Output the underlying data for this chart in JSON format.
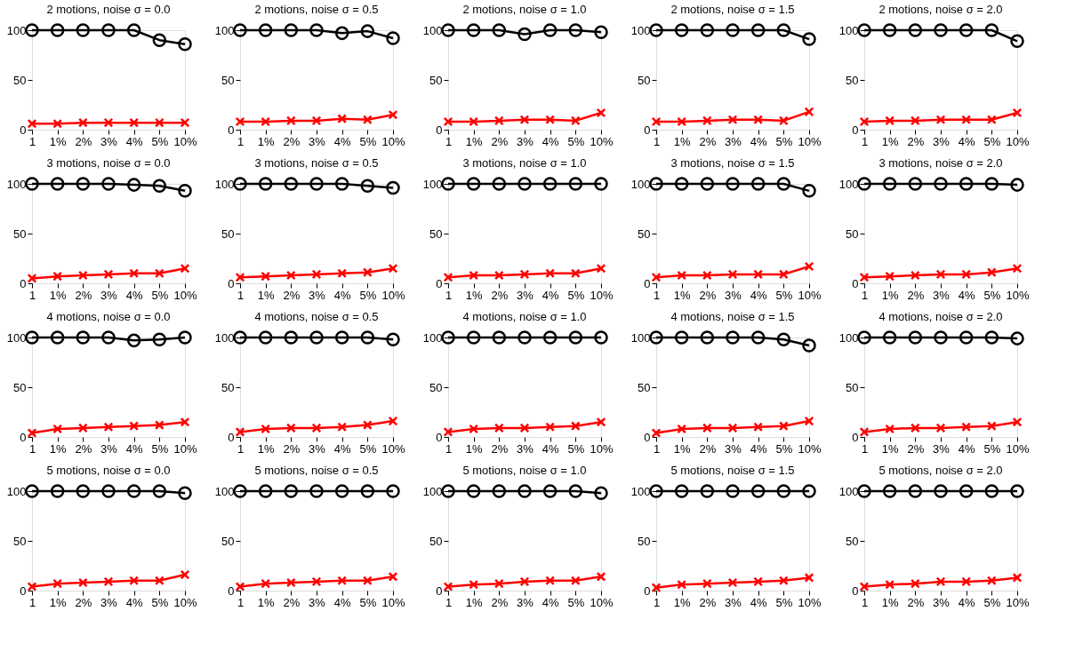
{
  "chart_data": [
    {
      "type": "line",
      "title": "2 motions, noise σ = 0.0",
      "categories": [
        "1",
        "1%",
        "2%",
        "3%",
        "4%",
        "5%",
        "10%"
      ],
      "ylim": [
        0,
        100
      ],
      "yticks": [
        0,
        50,
        100
      ],
      "grid": false,
      "series": [
        {
          "color": "#000000",
          "marker": "circle",
          "values": [
            100,
            100,
            100,
            100,
            100,
            90,
            86
          ]
        },
        {
          "color": "#ff0000",
          "marker": "cross",
          "values": [
            6,
            6,
            7,
            7,
            7,
            7,
            7
          ]
        }
      ]
    },
    {
      "type": "line",
      "title": "2 motions, noise σ = 0.5",
      "categories": [
        "1",
        "1%",
        "2%",
        "3%",
        "4%",
        "5%",
        "10%"
      ],
      "ylim": [
        0,
        100
      ],
      "yticks": [
        0,
        50,
        100
      ],
      "grid": false,
      "series": [
        {
          "color": "#000000",
          "marker": "circle",
          "values": [
            100,
            100,
            100,
            100,
            97,
            99,
            92
          ]
        },
        {
          "color": "#ff0000",
          "marker": "cross",
          "values": [
            8,
            8,
            9,
            9,
            11,
            10,
            15
          ]
        }
      ]
    },
    {
      "type": "line",
      "title": "2 motions, noise σ = 1.0",
      "categories": [
        "1",
        "1%",
        "2%",
        "3%",
        "4%",
        "5%",
        "10%"
      ],
      "ylim": [
        0,
        100
      ],
      "yticks": [
        0,
        50,
        100
      ],
      "grid": false,
      "series": [
        {
          "color": "#000000",
          "marker": "circle",
          "values": [
            100,
            100,
            100,
            96,
            100,
            100,
            98
          ]
        },
        {
          "color": "#ff0000",
          "marker": "cross",
          "values": [
            8,
            8,
            9,
            10,
            10,
            9,
            17
          ]
        }
      ]
    },
    {
      "type": "line",
      "title": "2 motions, noise σ = 1.5",
      "categories": [
        "1",
        "1%",
        "2%",
        "3%",
        "4%",
        "5%",
        "10%"
      ],
      "ylim": [
        0,
        100
      ],
      "yticks": [
        0,
        50,
        100
      ],
      "grid": false,
      "series": [
        {
          "color": "#000000",
          "marker": "circle",
          "values": [
            100,
            100,
            100,
            100,
            100,
            100,
            91
          ]
        },
        {
          "color": "#ff0000",
          "marker": "cross",
          "values": [
            8,
            8,
            9,
            10,
            10,
            9,
            18
          ]
        }
      ]
    },
    {
      "type": "line",
      "title": "2 motions, noise σ = 2.0",
      "categories": [
        "1",
        "1%",
        "2%",
        "3%",
        "4%",
        "5%",
        "10%"
      ],
      "ylim": [
        0,
        100
      ],
      "yticks": [
        0,
        50,
        100
      ],
      "grid": false,
      "series": [
        {
          "color": "#000000",
          "marker": "circle",
          "values": [
            100,
            100,
            100,
            100,
            100,
            100,
            89
          ]
        },
        {
          "color": "#ff0000",
          "marker": "cross",
          "values": [
            8,
            9,
            9,
            10,
            10,
            10,
            17
          ]
        }
      ]
    },
    {
      "type": "line",
      "title": "3 motions, noise σ = 0.0",
      "categories": [
        "1",
        "1%",
        "2%",
        "3%",
        "4%",
        "5%",
        "10%"
      ],
      "ylim": [
        0,
        100
      ],
      "yticks": [
        0,
        50,
        100
      ],
      "grid": false,
      "series": [
        {
          "color": "#000000",
          "marker": "circle",
          "values": [
            100,
            100,
            100,
            100,
            99,
            98,
            93
          ]
        },
        {
          "color": "#ff0000",
          "marker": "cross",
          "values": [
            5,
            7,
            8,
            9,
            10,
            10,
            15
          ]
        }
      ]
    },
    {
      "type": "line",
      "title": "3 motions, noise σ = 0.5",
      "categories": [
        "1",
        "1%",
        "2%",
        "3%",
        "4%",
        "5%",
        "10%"
      ],
      "ylim": [
        0,
        100
      ],
      "yticks": [
        0,
        50,
        100
      ],
      "grid": false,
      "series": [
        {
          "color": "#000000",
          "marker": "circle",
          "values": [
            100,
            100,
            100,
            100,
            100,
            98,
            96
          ]
        },
        {
          "color": "#ff0000",
          "marker": "cross",
          "values": [
            6,
            7,
            8,
            9,
            10,
            11,
            15
          ]
        }
      ]
    },
    {
      "type": "line",
      "title": "3 motions, noise σ = 1.0",
      "categories": [
        "1",
        "1%",
        "2%",
        "3%",
        "4%",
        "5%",
        "10%"
      ],
      "ylim": [
        0,
        100
      ],
      "yticks": [
        0,
        50,
        100
      ],
      "grid": false,
      "series": [
        {
          "color": "#000000",
          "marker": "circle",
          "values": [
            100,
            100,
            100,
            100,
            100,
            100,
            100
          ]
        },
        {
          "color": "#ff0000",
          "marker": "cross",
          "values": [
            6,
            8,
            8,
            9,
            10,
            10,
            15
          ]
        }
      ]
    },
    {
      "type": "line",
      "title": "3 motions, noise σ = 1.5",
      "categories": [
        "1",
        "1%",
        "2%",
        "3%",
        "4%",
        "5%",
        "10%"
      ],
      "ylim": [
        0,
        100
      ],
      "yticks": [
        0,
        50,
        100
      ],
      "grid": false,
      "series": [
        {
          "color": "#000000",
          "marker": "circle",
          "values": [
            100,
            100,
            100,
            100,
            100,
            100,
            93
          ]
        },
        {
          "color": "#ff0000",
          "marker": "cross",
          "values": [
            6,
            8,
            8,
            9,
            9,
            9,
            17
          ]
        }
      ]
    },
    {
      "type": "line",
      "title": "3 motions, noise σ = 2.0",
      "categories": [
        "1",
        "1%",
        "2%",
        "3%",
        "4%",
        "5%",
        "10%"
      ],
      "ylim": [
        0,
        100
      ],
      "yticks": [
        0,
        50,
        100
      ],
      "grid": false,
      "series": [
        {
          "color": "#000000",
          "marker": "circle",
          "values": [
            100,
            100,
            100,
            100,
            100,
            100,
            99
          ]
        },
        {
          "color": "#ff0000",
          "marker": "cross",
          "values": [
            6,
            7,
            8,
            9,
            9,
            11,
            15
          ]
        }
      ]
    },
    {
      "type": "line",
      "title": "4 motions, noise σ = 0.0",
      "categories": [
        "1",
        "1%",
        "2%",
        "3%",
        "4%",
        "5%",
        "10%"
      ],
      "ylim": [
        0,
        100
      ],
      "yticks": [
        0,
        50,
        100
      ],
      "grid": false,
      "series": [
        {
          "color": "#000000",
          "marker": "circle",
          "values": [
            100,
            100,
            100,
            100,
            97,
            98,
            100
          ]
        },
        {
          "color": "#ff0000",
          "marker": "cross",
          "values": [
            4,
            8,
            9,
            10,
            11,
            12,
            15
          ]
        }
      ]
    },
    {
      "type": "line",
      "title": "4 motions, noise σ = 0.5",
      "categories": [
        "1",
        "1%",
        "2%",
        "3%",
        "4%",
        "5%",
        "10%"
      ],
      "ylim": [
        0,
        100
      ],
      "yticks": [
        0,
        50,
        100
      ],
      "grid": false,
      "series": [
        {
          "color": "#000000",
          "marker": "circle",
          "values": [
            100,
            100,
            100,
            100,
            100,
            100,
            98
          ]
        },
        {
          "color": "#ff0000",
          "marker": "cross",
          "values": [
            5,
            8,
            9,
            9,
            10,
            12,
            16
          ]
        }
      ]
    },
    {
      "type": "line",
      "title": "4 motions, noise σ = 1.0",
      "categories": [
        "1",
        "1%",
        "2%",
        "3%",
        "4%",
        "5%",
        "10%"
      ],
      "ylim": [
        0,
        100
      ],
      "yticks": [
        0,
        50,
        100
      ],
      "grid": false,
      "series": [
        {
          "color": "#000000",
          "marker": "circle",
          "values": [
            100,
            100,
            100,
            100,
            100,
            100,
            100
          ]
        },
        {
          "color": "#ff0000",
          "marker": "cross",
          "values": [
            5,
            8,
            9,
            9,
            10,
            11,
            15
          ]
        }
      ]
    },
    {
      "type": "line",
      "title": "4 motions, noise σ = 1.5",
      "categories": [
        "1",
        "1%",
        "2%",
        "3%",
        "4%",
        "5%",
        "10%"
      ],
      "ylim": [
        0,
        100
      ],
      "yticks": [
        0,
        50,
        100
      ],
      "grid": false,
      "series": [
        {
          "color": "#000000",
          "marker": "circle",
          "values": [
            100,
            100,
            100,
            100,
            100,
            98,
            92
          ]
        },
        {
          "color": "#ff0000",
          "marker": "cross",
          "values": [
            4,
            8,
            9,
            9,
            10,
            11,
            16
          ]
        }
      ]
    },
    {
      "type": "line",
      "title": "4 motions, noise σ = 2.0",
      "categories": [
        "1",
        "1%",
        "2%",
        "3%",
        "4%",
        "5%",
        "10%"
      ],
      "ylim": [
        0,
        100
      ],
      "yticks": [
        0,
        50,
        100
      ],
      "grid": false,
      "series": [
        {
          "color": "#000000",
          "marker": "circle",
          "values": [
            100,
            100,
            100,
            100,
            100,
            100,
            99
          ]
        },
        {
          "color": "#ff0000",
          "marker": "cross",
          "values": [
            5,
            8,
            9,
            9,
            10,
            11,
            15
          ]
        }
      ]
    },
    {
      "type": "line",
      "title": "5 motions, noise σ = 0.0",
      "categories": [
        "1",
        "1%",
        "2%",
        "3%",
        "4%",
        "5%",
        "10%"
      ],
      "ylim": [
        0,
        100
      ],
      "yticks": [
        0,
        50,
        100
      ],
      "grid": false,
      "series": [
        {
          "color": "#000000",
          "marker": "circle",
          "values": [
            100,
            100,
            100,
            100,
            100,
            100,
            98
          ]
        },
        {
          "color": "#ff0000",
          "marker": "cross",
          "values": [
            4,
            7,
            8,
            9,
            10,
            10,
            16
          ]
        }
      ]
    },
    {
      "type": "line",
      "title": "5 motions, noise σ = 0.5",
      "categories": [
        "1",
        "1%",
        "2%",
        "3%",
        "4%",
        "5%",
        "10%"
      ],
      "ylim": [
        0,
        100
      ],
      "yticks": [
        0,
        50,
        100
      ],
      "grid": false,
      "series": [
        {
          "color": "#000000",
          "marker": "circle",
          "values": [
            100,
            100,
            100,
            100,
            100,
            100,
            100
          ]
        },
        {
          "color": "#ff0000",
          "marker": "cross",
          "values": [
            4,
            7,
            8,
            9,
            10,
            10,
            14
          ]
        }
      ]
    },
    {
      "type": "line",
      "title": "5 motions, noise σ = 1.0",
      "categories": [
        "1",
        "1%",
        "2%",
        "3%",
        "4%",
        "5%",
        "10%"
      ],
      "ylim": [
        0,
        100
      ],
      "yticks": [
        0,
        50,
        100
      ],
      "grid": false,
      "series": [
        {
          "color": "#000000",
          "marker": "circle",
          "values": [
            100,
            100,
            100,
            100,
            100,
            100,
            98
          ]
        },
        {
          "color": "#ff0000",
          "marker": "cross",
          "values": [
            4,
            6,
            7,
            9,
            10,
            10,
            14
          ]
        }
      ]
    },
    {
      "type": "line",
      "title": "5 motions, noise σ = 1.5",
      "categories": [
        "1",
        "1%",
        "2%",
        "3%",
        "4%",
        "5%",
        "10%"
      ],
      "ylim": [
        0,
        100
      ],
      "yticks": [
        0,
        50,
        100
      ],
      "grid": false,
      "series": [
        {
          "color": "#000000",
          "marker": "circle",
          "values": [
            100,
            100,
            100,
            100,
            100,
            100,
            100
          ]
        },
        {
          "color": "#ff0000",
          "marker": "cross",
          "values": [
            3,
            6,
            7,
            8,
            9,
            10,
            13
          ]
        }
      ]
    },
    {
      "type": "line",
      "title": "5 motions, noise σ = 2.0",
      "categories": [
        "1",
        "1%",
        "2%",
        "3%",
        "4%",
        "5%",
        "10%"
      ],
      "ylim": [
        0,
        100
      ],
      "yticks": [
        0,
        50,
        100
      ],
      "grid": false,
      "series": [
        {
          "color": "#000000",
          "marker": "circle",
          "values": [
            100,
            100,
            100,
            100,
            100,
            100,
            100
          ]
        },
        {
          "color": "#ff0000",
          "marker": "cross",
          "values": [
            4,
            6,
            7,
            9,
            9,
            10,
            13
          ]
        }
      ]
    }
  ]
}
